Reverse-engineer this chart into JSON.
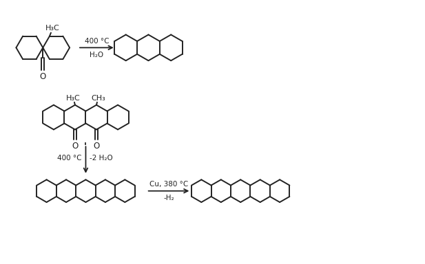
{
  "bg": "#ffffff",
  "lc": "#222222",
  "lw": 1.4,
  "fs": 7.5,
  "r1_arrow_top": "400 °C",
  "r1_arrow_bot": "H₂O",
  "r2_arrow_left": "400 °C",
  "r2_arrow_right": "-2 H₂O",
  "r3_arrow_top": "Cu, 380 °C",
  "r3_arrow_bot": "-H₂"
}
